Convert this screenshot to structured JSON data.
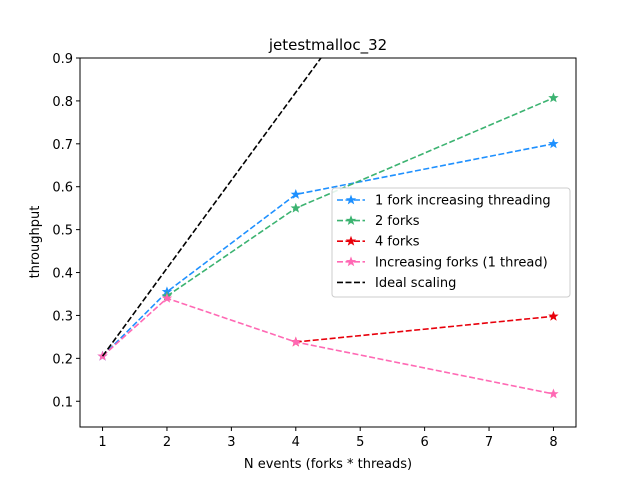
{
  "chart_data": {
    "type": "line",
    "title": "jetestmalloc_32",
    "xlabel": "N events (forks * threads)",
    "ylabel": "throughput",
    "xlim": [
      0.65,
      8.35
    ],
    "ylim": [
      0.04,
      0.9
    ],
    "xticks": [
      1,
      2,
      3,
      4,
      5,
      6,
      7,
      8
    ],
    "yticks": [
      0.1,
      0.2,
      0.3,
      0.4,
      0.5,
      0.6,
      0.7,
      0.8,
      0.9
    ],
    "ytick_labels": [
      "0.1",
      "0.2",
      "0.3",
      "0.4",
      "0.5",
      "0.6",
      "0.7",
      "0.8",
      "0.9"
    ],
    "grid": false,
    "legend_position": "center-right",
    "series": [
      {
        "name": "1 fork increasing threading",
        "color": "#1e90ff",
        "marker": "star",
        "dash": true,
        "x": [
          1,
          2,
          4,
          8
        ],
        "y": [
          0.205,
          0.355,
          0.582,
          0.7
        ]
      },
      {
        "name": "2 forks",
        "color": "#3cb371",
        "marker": "star",
        "dash": true,
        "x": [
          2,
          4,
          8
        ],
        "y": [
          0.345,
          0.55,
          0.807
        ]
      },
      {
        "name": "4 forks",
        "color": "#e8000b",
        "marker": "star",
        "dash": true,
        "x": [
          4,
          8
        ],
        "y": [
          0.238,
          0.298
        ]
      },
      {
        "name": "Increasing forks (1 thread)",
        "color": "#ff69b4",
        "marker": "star",
        "dash": true,
        "x": [
          1,
          2,
          4,
          8
        ],
        "y": [
          0.205,
          0.34,
          0.238,
          0.117
        ]
      },
      {
        "name": "Ideal scaling",
        "color": "#000000",
        "marker": "none",
        "dash": true,
        "x": [
          1,
          4.4
        ],
        "y": [
          0.205,
          0.902
        ]
      }
    ]
  }
}
